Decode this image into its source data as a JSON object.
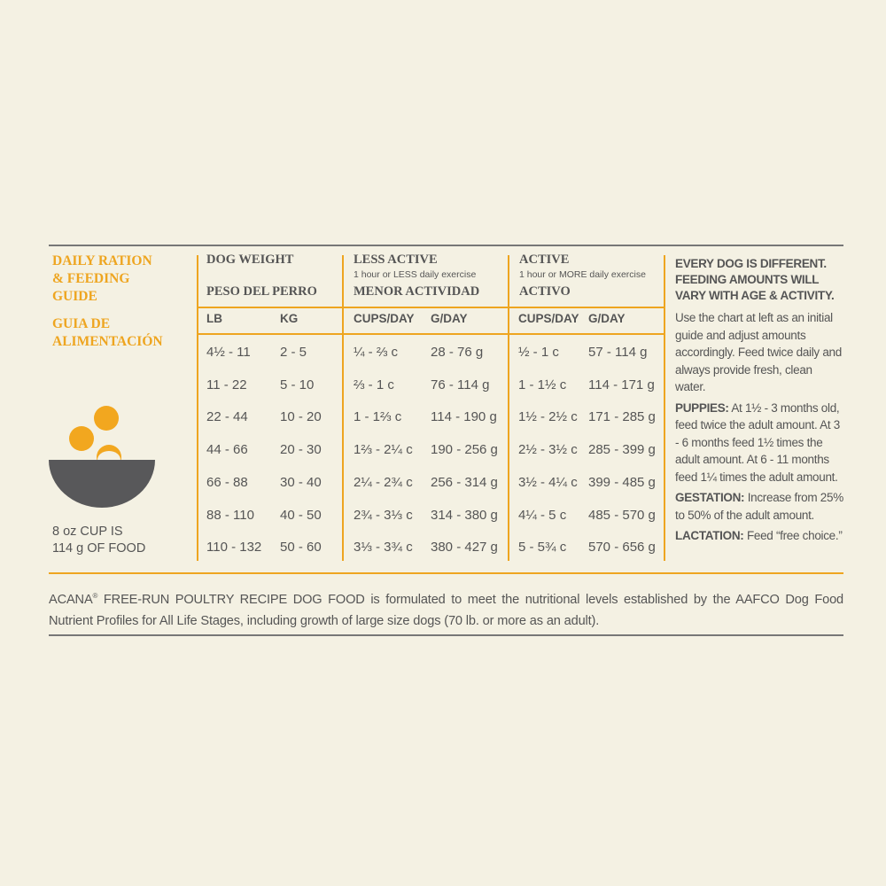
{
  "left": {
    "title": [
      "DAILY RATION",
      "& FEEDING",
      "GUIDE"
    ],
    "title_es": [
      "GUIA DE",
      "ALIMENTACIÓN"
    ],
    "cup_note": [
      "8 oz CUP IS",
      "114 g OF FOOD"
    ]
  },
  "table": {
    "groups": [
      {
        "title": "DOG WEIGHT",
        "title_es": "PESO DEL PERRO"
      },
      {
        "title": "LESS ACTIVE",
        "note": "1 hour or LESS daily exercise",
        "title_es": "MENOR ACTIVIDAD"
      },
      {
        "title": "ACTIVE",
        "note": "1 hour or MORE daily exercise",
        "title_es": "ACTIVO"
      }
    ],
    "subheaders": [
      "LB",
      "KG",
      "CUPS/DAY",
      "G/DAY",
      "CUPS/DAY",
      "G/DAY"
    ],
    "rows": [
      [
        "4½ - 11",
        "2 - 5",
        "¼ - ⅔ c",
        "28 - 76 g",
        "½ - 1 c",
        "57 - 114 g"
      ],
      [
        "11 - 22",
        "5 - 10",
        "⅔ - 1 c",
        "76 - 114 g",
        "1 - 1½ c",
        "114 - 171 g"
      ],
      [
        "22 - 44",
        "10 - 20",
        "1 - 1⅔ c",
        "114 - 190 g",
        "1½ - 2½ c",
        "171 - 285 g"
      ],
      [
        "44 - 66",
        "20 - 30",
        "1⅔ - 2¼ c",
        "190 - 256 g",
        "2½ - 3½ c",
        "285 - 399 g"
      ],
      [
        "66 - 88",
        "30 - 40",
        "2¼ - 2¾ c",
        "256 - 314 g",
        "3½ - 4¼ c",
        "399 - 485 g"
      ],
      [
        "88 - 110",
        "40 - 50",
        "2¾ - 3⅓ c",
        "314 - 380 g",
        "4¼ - 5 c",
        "485 - 570 g"
      ],
      [
        "110 - 132",
        "50 - 60",
        "3⅓ - 3¾ c",
        "380 - 427 g",
        "5 - 5¾ c",
        "570 - 656 g"
      ]
    ]
  },
  "notes": {
    "heading": "EVERY DOG IS DIFFERENT. FEEDING AMOUNTS WILL VARY WITH AGE & ACTIVITY.",
    "intro": "Use the chart at left as an initial guide and adjust amounts accordingly. Feed twice daily and always provide fresh, clean water.",
    "items": [
      {
        "label": "PUPPIES:",
        "text": "At 1½ - 3 months old, feed twice the adult amount. At 3 - 6 months feed 1½ times the adult amount. At 6 - 11 months feed 1¼ times the adult amount."
      },
      {
        "label": "GESTATION:",
        "text": "Increase from 25% to 50% of the adult amount."
      },
      {
        "label": "LACTATION:",
        "text": "Feed “free choice.”"
      }
    ]
  },
  "footer": {
    "brand": "ACANA",
    "mark": "®",
    "text": "FREE-RUN POULTRY RECIPE DOG FOOD is formulated to meet the nutritional levels established by the AAFCO Dog Food Nutrient Profiles for All Life Stages, including growth of large size dogs (70 lb. or more as an adult)."
  }
}
